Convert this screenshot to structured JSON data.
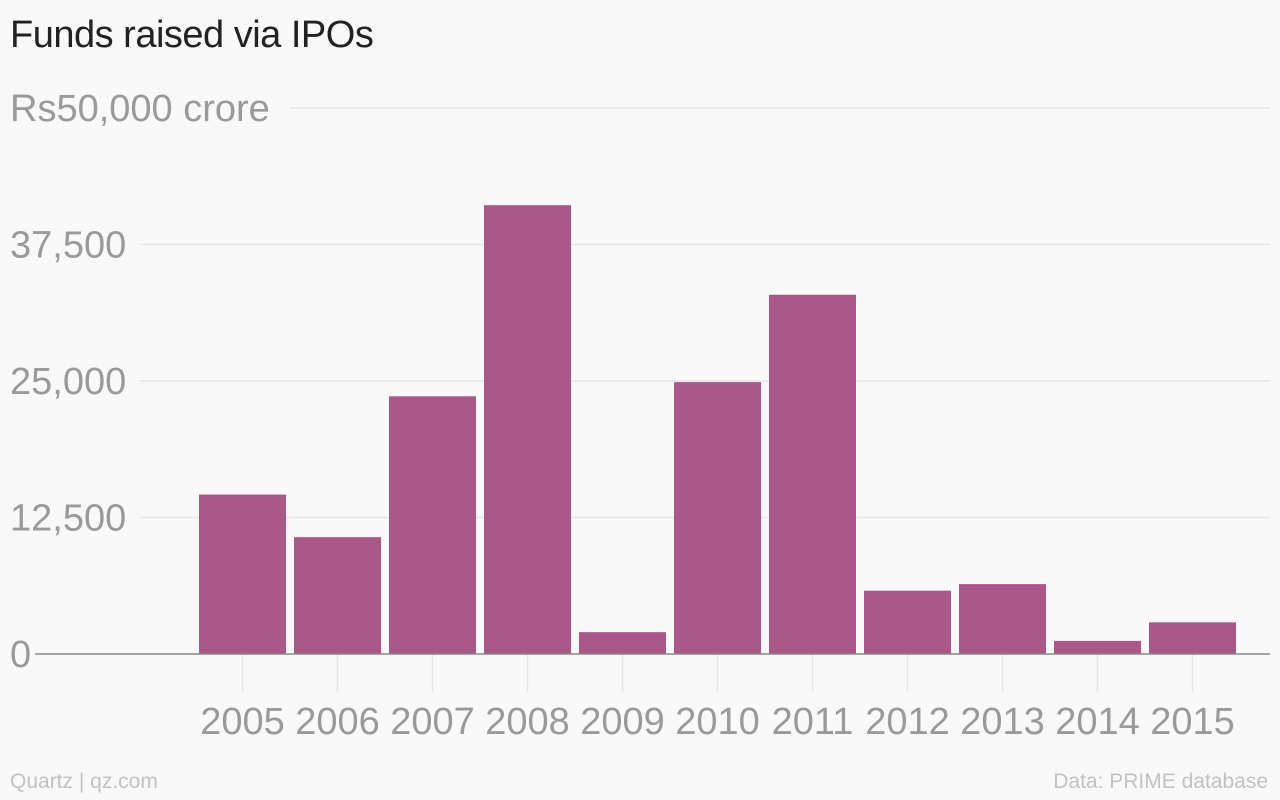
{
  "title": "Funds raised via IPOs",
  "source": "Data: PRIME database",
  "credit": "Quartz | qz.com",
  "colors": {
    "bar": "#a95887",
    "grid": "#e6e6e6",
    "axis_text": "#9a9a9a",
    "baseline": "#888888"
  },
  "chart_data": {
    "type": "bar",
    "categories": [
      "2005",
      "2006",
      "2007",
      "2008",
      "2009",
      "2010",
      "2011",
      "2012",
      "2013",
      "2014",
      "2015"
    ],
    "values": [
      14600,
      10700,
      23600,
      41100,
      2000,
      24900,
      32900,
      5800,
      6400,
      1200,
      2900
    ],
    "ylim": [
      0,
      50000
    ],
    "yticks": [
      0,
      12500,
      25000,
      37500,
      50000
    ],
    "ytick_labels": [
      "0",
      "12,500",
      "25,000",
      "37,500",
      "Rs50,000 crore"
    ],
    "grid": true,
    "xlabel": "",
    "ylabel": ""
  }
}
